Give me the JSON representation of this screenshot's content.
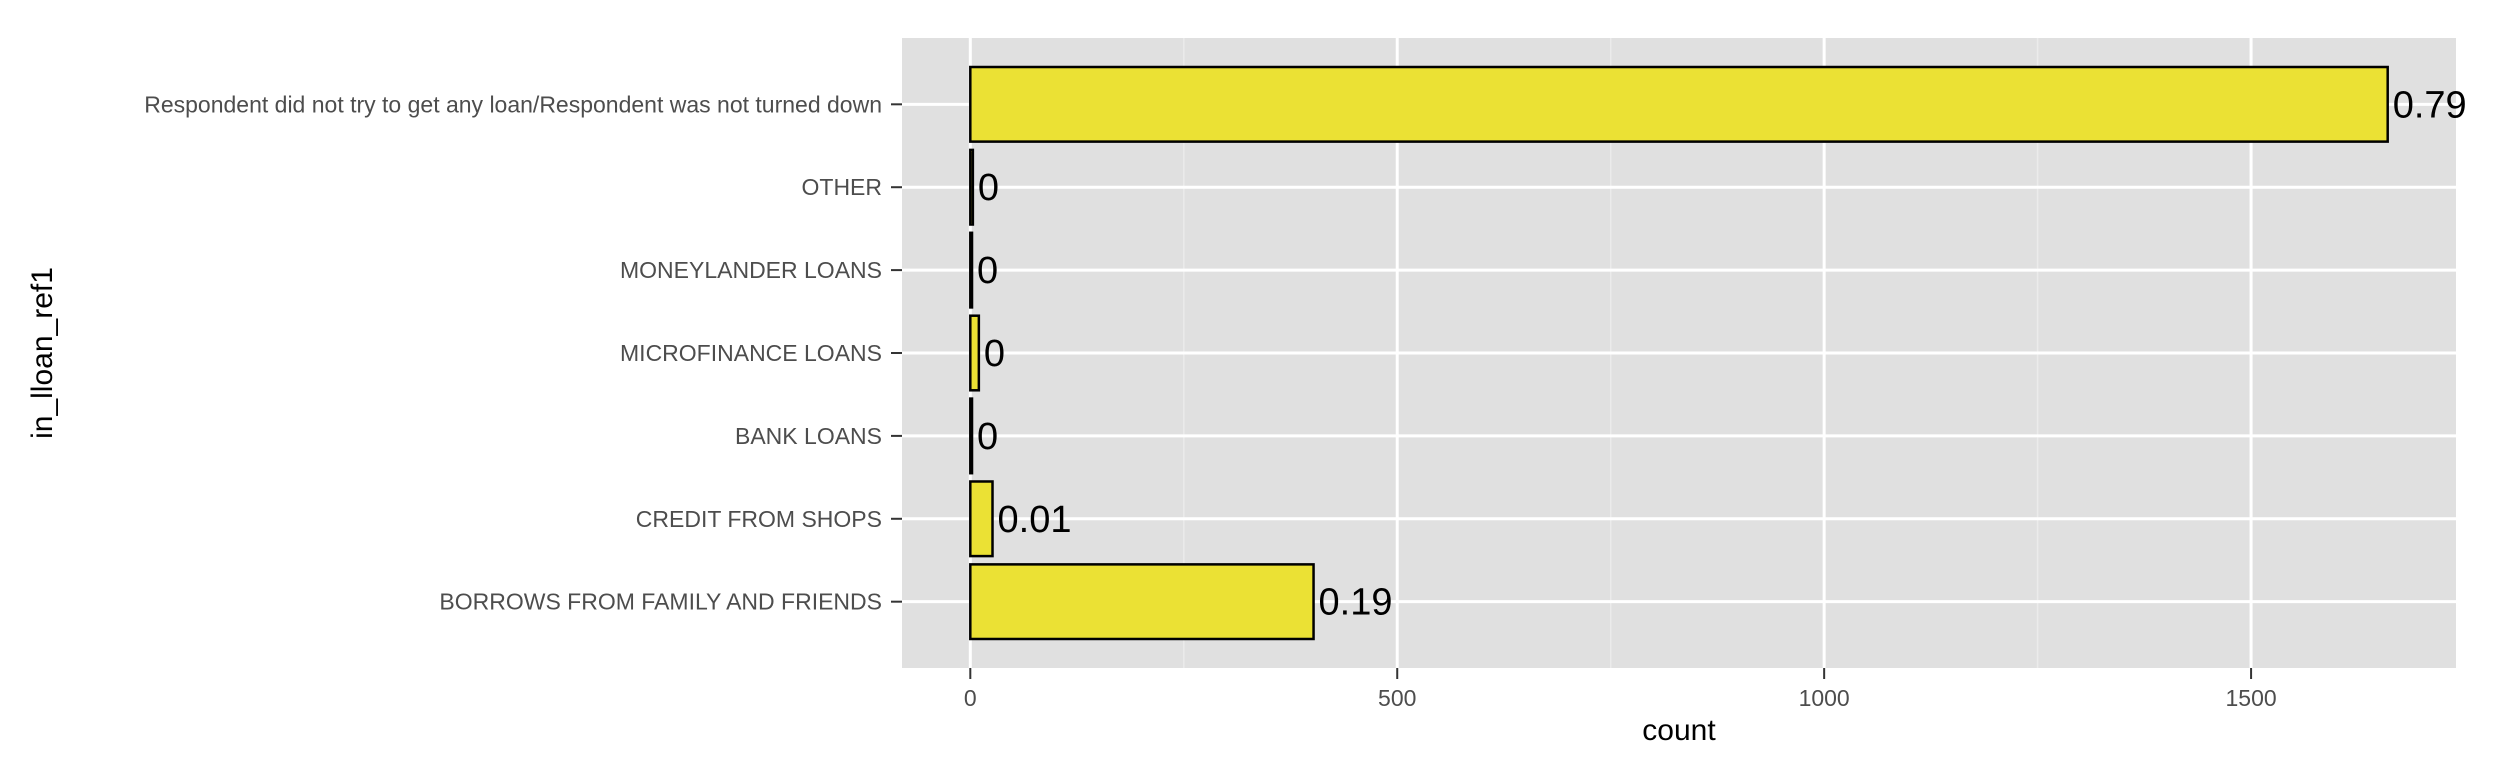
{
  "chart_data": {
    "type": "bar",
    "orientation": "horizontal",
    "categories": [
      "Respondent did not try to get any loan/Respondent was not turned down",
      "OTHER",
      "MONEYLANDER LOANS",
      "MICROFINANCE LOANS",
      "BANK LOANS",
      "CREDIT FROM SHOPS",
      "BORROWS FROM FAMILY AND FRIENDS"
    ],
    "values": [
      1660,
      3,
      2,
      10,
      2,
      26,
      402
    ],
    "data_labels": [
      "0.79",
      "0",
      "0",
      "0",
      "0",
      "0.01",
      "0.19"
    ],
    "xlabel": "count",
    "ylabel": "in_lloan_ref1",
    "xlim": [
      -80,
      1740
    ],
    "x_ticks": [
      0,
      500,
      1000,
      1500
    ],
    "x_tick_labels": [
      "0",
      "500",
      "1000",
      "1500"
    ],
    "grid": true,
    "legend": "none",
    "bar_color": "#EBE134",
    "bar_outline": "#000000",
    "panel_background": "#E0E0E0",
    "grid_color": "#FFFFFF"
  }
}
